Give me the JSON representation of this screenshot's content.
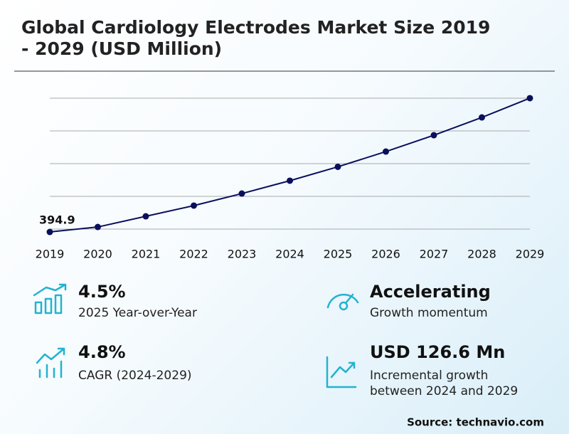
{
  "chart_data": {
    "type": "line",
    "title": "Global Cardiology Electrodes Market Size 2019 - 2029 (USD Million)",
    "categories": [
      "2019",
      "2020",
      "2021",
      "2022",
      "2023",
      "2024",
      "2025",
      "2026",
      "2027",
      "2028",
      "2029"
    ],
    "values": [
      394.9,
      402.5,
      418.9,
      435.3,
      453.8,
      473.5,
      494.8,
      518.2,
      543.3,
      570.6,
      600.1
    ],
    "color": "#0a0f5c",
    "ylim": [
      390,
      605
    ],
    "grid": true
  },
  "stats": [
    {
      "value": "4.5%",
      "label": "2025 Year-over-Year"
    },
    {
      "value": "Accelerating",
      "label": "Growth momentum"
    },
    {
      "value": "4.8%",
      "label": "CAGR (2024-2029)"
    },
    {
      "value": "USD 126.6 Mn",
      "label": "Incremental growth between 2024 and 2029"
    }
  ],
  "source": "Source: technavio.com"
}
